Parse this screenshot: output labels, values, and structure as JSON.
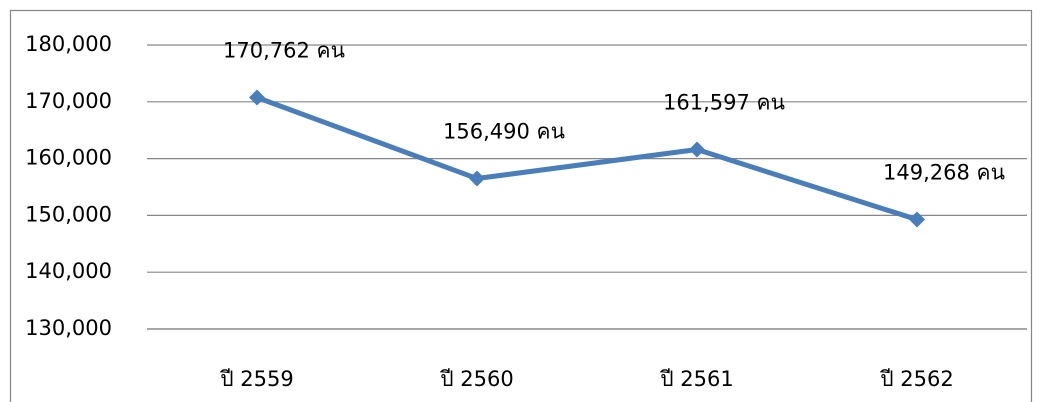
{
  "chart_data": {
    "type": "line",
    "categories": [
      "ปี 2559",
      "ปี 2560",
      "ปี 2561",
      "ปี 2562"
    ],
    "series": [
      {
        "name": null,
        "color": "#4a7ebb",
        "values": [
          170762,
          156490,
          161597,
          149268
        ],
        "value_labels": [
          "170,762 คน",
          "156,490 คน",
          "161,597 คน",
          "149,268 คน"
        ]
      }
    ],
    "ylim": [
      130000,
      180000
    ],
    "yticks": [
      {
        "value": 130000,
        "label": "130,000"
      },
      {
        "value": 140000,
        "label": "140,000"
      },
      {
        "value": 150000,
        "label": "150,000"
      },
      {
        "value": 160000,
        "label": "160,000"
      },
      {
        "value": 170000,
        "label": "170,000"
      },
      {
        "value": 180000,
        "label": "180,000"
      }
    ],
    "grid": true
  }
}
